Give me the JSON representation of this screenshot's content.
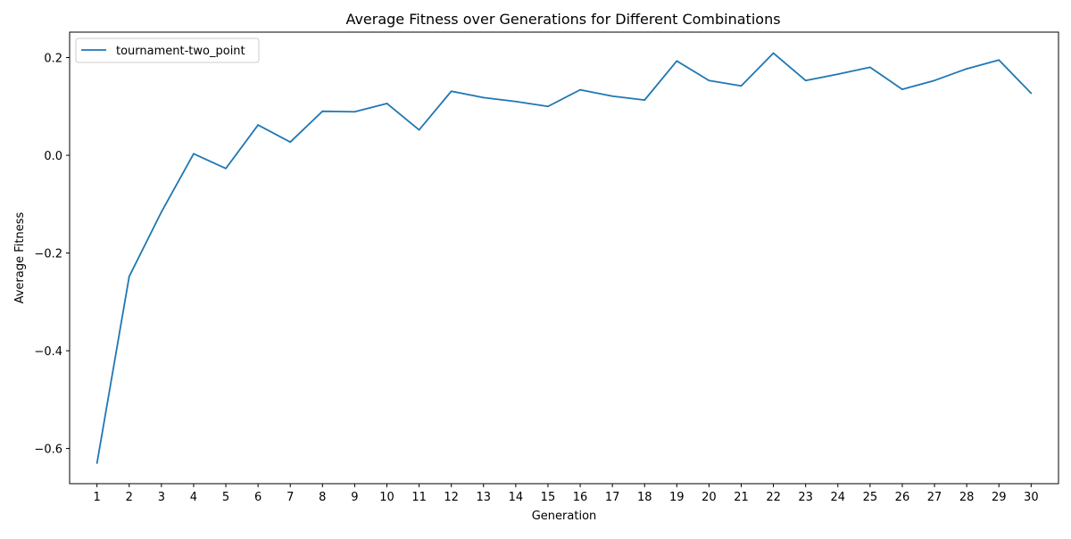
{
  "chart_data": {
    "type": "line",
    "title": "Average Fitness over Generations for Different Combinations",
    "xlabel": "Generation",
    "ylabel": "Average Fitness",
    "x": [
      1,
      2,
      3,
      4,
      5,
      6,
      7,
      8,
      9,
      10,
      11,
      12,
      13,
      14,
      15,
      16,
      17,
      18,
      19,
      20,
      21,
      22,
      23,
      24,
      25,
      26,
      27,
      28,
      29,
      30
    ],
    "xticks": [
      "1",
      "2",
      "3",
      "4",
      "5",
      "6",
      "7",
      "8",
      "9",
      "10",
      "11",
      "12",
      "13",
      "14",
      "15",
      "16",
      "17",
      "18",
      "19",
      "20",
      "21",
      "22",
      "23",
      "24",
      "25",
      "26",
      "27",
      "28",
      "29",
      "30"
    ],
    "yticks": [
      "−0.6",
      "−0.4",
      "−0.2",
      "0.0",
      "0.2"
    ],
    "ytick_values": [
      -0.6,
      -0.4,
      -0.2,
      0.0,
      0.2
    ],
    "xlim": [
      0.15,
      30.85
    ],
    "ylim": [
      -0.672,
      0.252
    ],
    "grid": false,
    "legend_position": "top-left",
    "series": [
      {
        "name": "tournament-two_point",
        "color": "#1f77b4",
        "values": [
          -0.63,
          -0.248,
          -0.116,
          0.003,
          -0.027,
          0.062,
          0.027,
          0.09,
          0.089,
          0.106,
          0.052,
          0.131,
          0.118,
          0.11,
          0.1,
          0.134,
          0.121,
          0.113,
          0.193,
          0.153,
          0.142,
          0.209,
          0.153,
          0.166,
          0.18,
          0.135,
          0.153,
          0.177,
          0.195,
          0.127
        ]
      }
    ]
  }
}
